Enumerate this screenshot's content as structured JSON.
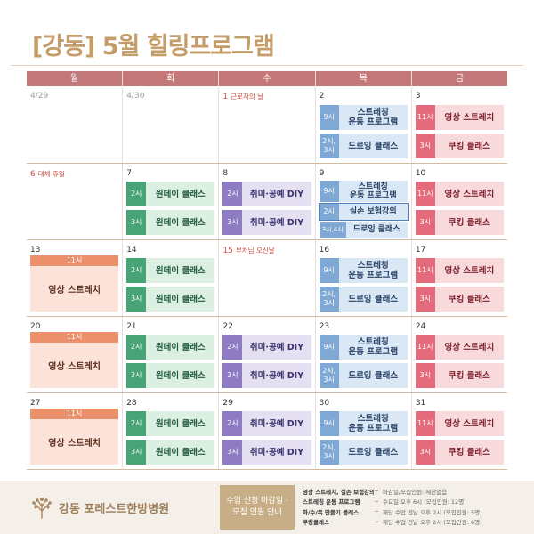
{
  "header": {
    "title": "[강동] 5월 힐링프로그램"
  },
  "weekdays": [
    "월",
    "화",
    "수",
    "목",
    "금"
  ],
  "weeks": [
    {
      "days": [
        {
          "date": "4/29"
        },
        {
          "date": "4/30"
        },
        {
          "date": "1",
          "note": "근로자의 날"
        },
        {
          "date": "2",
          "events": [
            {
              "time": "9시",
              "name": "스트레칭\n운동 프로그램"
            },
            {
              "time": "2시,\n3시",
              "name": "드로잉 클래스"
            }
          ]
        },
        {
          "date": "3",
          "events": [
            {
              "time": "11시",
              "name": "영상 스트레치"
            },
            {
              "time": "3시",
              "name": "쿠킹 클래스"
            }
          ]
        }
      ]
    },
    {
      "days": [
        {
          "date": "6",
          "note": "대체 휴일"
        },
        {
          "date": "7",
          "events": [
            {
              "time": "2시",
              "name": "원데이 클래스"
            },
            {
              "time": "3시",
              "name": "원데이 클래스"
            }
          ]
        },
        {
          "date": "8",
          "events": [
            {
              "time": "2시",
              "name": "취미·공예 DIY"
            },
            {
              "time": "3시",
              "name": "취미·공예 DIY"
            }
          ]
        },
        {
          "date": "9",
          "events": [
            {
              "time": "9시",
              "name": "스트레칭\n운동 프로그램"
            },
            {
              "time": "2시",
              "name": "실손 보험강의"
            },
            {
              "time": "3시,4시",
              "name": "드로잉 클래스"
            }
          ]
        },
        {
          "date": "10",
          "events": [
            {
              "time": "11시",
              "name": "영상 스트레치"
            },
            {
              "time": "3시",
              "name": "쿠킹 클래스"
            }
          ]
        }
      ]
    },
    {
      "days": [
        {
          "date": "13",
          "events": [
            {
              "time": "11시",
              "name": "영상 스트레치"
            }
          ]
        },
        {
          "date": "14",
          "events": [
            {
              "time": "2시",
              "name": "원데이 클래스"
            },
            {
              "time": "3시",
              "name": "원데이 클래스"
            }
          ]
        },
        {
          "date": "15",
          "note": "부처님 오신날"
        },
        {
          "date": "16",
          "events": [
            {
              "time": "9시",
              "name": "스트레칭\n운동 프로그램"
            },
            {
              "time": "2시,\n3시",
              "name": "드로잉 클래스"
            }
          ]
        },
        {
          "date": "17",
          "events": [
            {
              "time": "11시",
              "name": "영상 스트레치"
            },
            {
              "time": "3시",
              "name": "쿠킹 클래스"
            }
          ]
        }
      ]
    },
    {
      "days": [
        {
          "date": "20",
          "events": [
            {
              "time": "11시",
              "name": "영상 스트레치"
            }
          ]
        },
        {
          "date": "21",
          "events": [
            {
              "time": "2시",
              "name": "원데이 클래스"
            },
            {
              "time": "3시",
              "name": "원데이 클래스"
            }
          ]
        },
        {
          "date": "22",
          "events": [
            {
              "time": "2시",
              "name": "취미·공예 DIY"
            },
            {
              "time": "3시",
              "name": "취미·공예 DIY"
            }
          ]
        },
        {
          "date": "23",
          "events": [
            {
              "time": "9시",
              "name": "스트레칭\n운동 프로그램"
            },
            {
              "time": "2시,\n3시",
              "name": "드로잉 클래스"
            }
          ]
        },
        {
          "date": "24",
          "events": [
            {
              "time": "11시",
              "name": "영상 스트레치"
            },
            {
              "time": "3시",
              "name": "쿠킹 클래스"
            }
          ]
        }
      ]
    },
    {
      "days": [
        {
          "date": "27",
          "events": [
            {
              "time": "11시",
              "name": "영상 스트레치"
            }
          ]
        },
        {
          "date": "28",
          "events": [
            {
              "time": "2시",
              "name": "원데이 클래스"
            },
            {
              "time": "3시",
              "name": "원데이 클래스"
            }
          ]
        },
        {
          "date": "29",
          "events": [
            {
              "time": "2시",
              "name": "취미·공예 DIY"
            },
            {
              "time": "3시",
              "name": "취미·공예 DIY"
            }
          ]
        },
        {
          "date": "30",
          "events": [
            {
              "time": "9시",
              "name": "스트레칭\n운동 프로그램"
            },
            {
              "time": "2시,\n3시",
              "name": "드로잉 클래스"
            }
          ]
        },
        {
          "date": "31",
          "events": [
            {
              "time": "11시",
              "name": "영상 스트레치"
            },
            {
              "time": "3시",
              "name": "쿠킹 클래스"
            }
          ]
        }
      ]
    }
  ],
  "footer": {
    "hospital": "강동 포레스트한방병원",
    "notice_line1": "수업 신청 마감일 ·",
    "notice_line2": "모집 인원 안내",
    "info": [
      {
        "label": "영상 스트레치, 실손 보험강의",
        "value": "마감일/모집인원: 제한없음"
      },
      {
        "label": "스트레칭 운동 프로그램",
        "value": "수요일 오후 6시 (모집인원: 12명)"
      },
      {
        "label": "화/수/목 만들기 클래스",
        "value": "해당 수업 전날 오후 2시 (모집인원: 5명)"
      },
      {
        "label": "쿠킹클래스",
        "value": "해당 수업 전날 오후 2시 (모집인원: 6명)"
      }
    ]
  },
  "colors": {
    "accent": "#c49d68",
    "header": "#c4787a",
    "green": "#48a377",
    "purple": "#8e7cc2",
    "blue": "#7fa8d4",
    "red": "#e46b7b",
    "orange": "#ec8f6b"
  }
}
